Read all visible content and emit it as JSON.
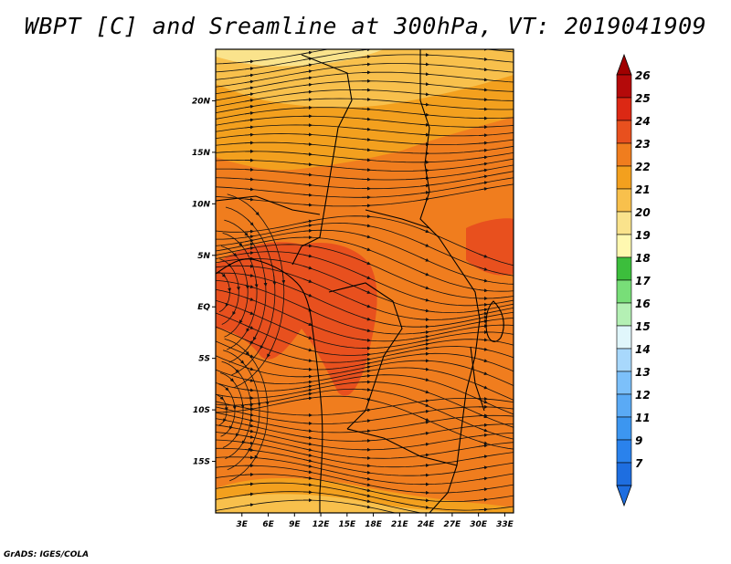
{
  "title": "WBPT [C] and Sreamline at 300hPa, VT: 2019041909",
  "credit": "GrADS: IGES/COLA",
  "map": {
    "lon_labels": [
      "3E",
      "6E",
      "9E",
      "12E",
      "15E",
      "18E",
      "21E",
      "24E",
      "27E",
      "30E",
      "33E"
    ],
    "lat_labels": [
      "20N",
      "15N",
      "10N",
      "5N",
      "EQ",
      "5S",
      "10S",
      "15S"
    ],
    "lon_range": [
      0,
      34
    ],
    "lat_range": [
      -20,
      25
    ]
  },
  "colorbar": {
    "labels": [
      "7",
      "9",
      "11",
      "12",
      "13",
      "14",
      "15",
      "16",
      "17",
      "18",
      "19",
      "20",
      "21",
      "22",
      "23",
      "24",
      "25",
      "26"
    ],
    "colors": [
      "#1e6ee0",
      "#2a82ec",
      "#3c96f0",
      "#5aaaf5",
      "#7cc0fa",
      "#a8d8fc",
      "#e0f6fb",
      "#b4f0b4",
      "#78de78",
      "#3cbe3c",
      "#fff8b0",
      "#fae38c",
      "#f8c04c",
      "#f3a01e",
      "#f07d1e",
      "#e8501e",
      "#dc2814",
      "#b40a0a"
    ],
    "low_arrow_color": "#1e6ee0",
    "high_arrow_color": "#a00000"
  }
}
